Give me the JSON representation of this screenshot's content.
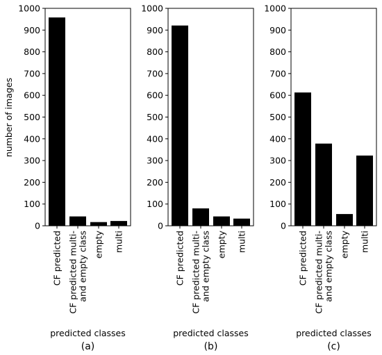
{
  "ylabel": "number of images",
  "chart_data": [
    {
      "type": "bar",
      "categories": [
        "CF predicted",
        "CF predicted multi-\nand empty class",
        "empty",
        "multi"
      ],
      "values": [
        958,
        43,
        17,
        22
      ],
      "ylim": [
        0,
        1000
      ],
      "yticks": [
        0,
        100,
        200,
        300,
        400,
        500,
        600,
        700,
        800,
        900,
        1000
      ],
      "xlabel": "predicted classes",
      "ylabel": "number of images",
      "caption": "(a)"
    },
    {
      "type": "bar",
      "categories": [
        "CF predicted",
        "CF predicted multi-\nand empty class",
        "empty",
        "multi"
      ],
      "values": [
        921,
        80,
        43,
        33
      ],
      "ylim": [
        0,
        1000
      ],
      "yticks": [
        0,
        100,
        200,
        300,
        400,
        500,
        600,
        700,
        800,
        900,
        1000
      ],
      "xlabel": "predicted classes",
      "ylabel": "",
      "caption": "(b)"
    },
    {
      "type": "bar",
      "categories": [
        "CF predicted",
        "CF predicted multi-\nand empty class",
        "empty",
        "multi"
      ],
      "values": [
        613,
        378,
        54,
        323
      ],
      "ylim": [
        0,
        1000
      ],
      "yticks": [
        0,
        100,
        200,
        300,
        400,
        500,
        600,
        700,
        800,
        900,
        1000
      ],
      "xlabel": "predicted classes",
      "ylabel": "",
      "caption": "(c)"
    }
  ],
  "colors": {
    "bar": "#000000",
    "axis": "#000000",
    "background": "#ffffff"
  }
}
